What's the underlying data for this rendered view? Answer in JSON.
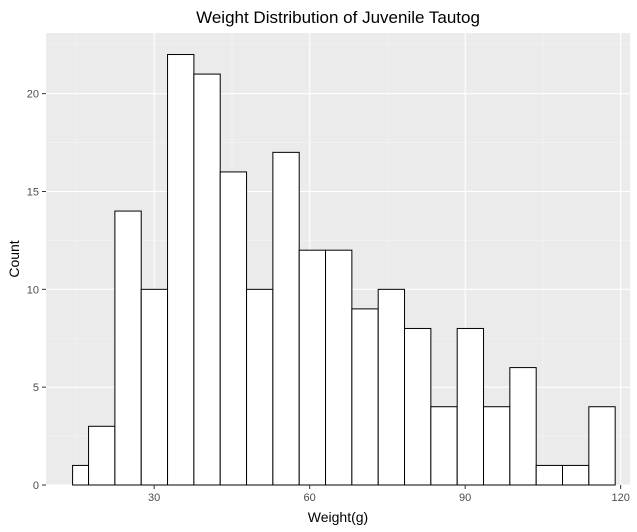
{
  "chart_data": {
    "type": "bar",
    "title": "Weight Distribution of Juvenile Tautog",
    "xlabel": "Weight(g)",
    "ylabel": "Count",
    "xlim": [
      9.13,
      121.8
    ],
    "ylim": [
      0,
      23.1
    ],
    "xticks": [
      30,
      60,
      90,
      120
    ],
    "yticks": [
      0,
      5,
      10,
      15,
      20
    ],
    "xtick_labels": [
      "30",
      "60",
      "90",
      "120"
    ],
    "ytick_labels": [
      "0",
      "5",
      "10",
      "15",
      "20"
    ],
    "grid": true,
    "legend": "none",
    "bins": [
      {
        "x0": 14.26,
        "x1": 17.34,
        "count": 1
      },
      {
        "x0": 17.34,
        "x1": 22.42,
        "count": 3
      },
      {
        "x0": 22.42,
        "x1": 27.5,
        "count": 14
      },
      {
        "x0": 27.5,
        "x1": 32.58,
        "count": 10
      },
      {
        "x0": 32.58,
        "x1": 37.66,
        "count": 22
      },
      {
        "x0": 37.66,
        "x1": 42.74,
        "count": 21
      },
      {
        "x0": 42.74,
        "x1": 47.82,
        "count": 16
      },
      {
        "x0": 47.82,
        "x1": 52.9,
        "count": 10
      },
      {
        "x0": 52.9,
        "x1": 57.98,
        "count": 17
      },
      {
        "x0": 57.98,
        "x1": 63.06,
        "count": 12
      },
      {
        "x0": 63.06,
        "x1": 68.14,
        "count": 12
      },
      {
        "x0": 68.14,
        "x1": 73.22,
        "count": 9
      },
      {
        "x0": 73.22,
        "x1": 78.3,
        "count": 10
      },
      {
        "x0": 78.3,
        "x1": 83.38,
        "count": 8
      },
      {
        "x0": 83.38,
        "x1": 88.46,
        "count": 4
      },
      {
        "x0": 88.46,
        "x1": 93.54,
        "count": 8
      },
      {
        "x0": 93.54,
        "x1": 98.62,
        "count": 4
      },
      {
        "x0": 98.62,
        "x1": 103.7,
        "count": 6
      },
      {
        "x0": 103.7,
        "x1": 108.78,
        "count": 1
      },
      {
        "x0": 108.78,
        "x1": 113.86,
        "count": 1
      },
      {
        "x0": 113.86,
        "x1": 118.94,
        "count": 4
      }
    ],
    "colors": {
      "panel_background": "#ebebeb",
      "bar_fill": "#ffffff",
      "bar_outline": "#000000",
      "grid": "#ffffff"
    }
  }
}
